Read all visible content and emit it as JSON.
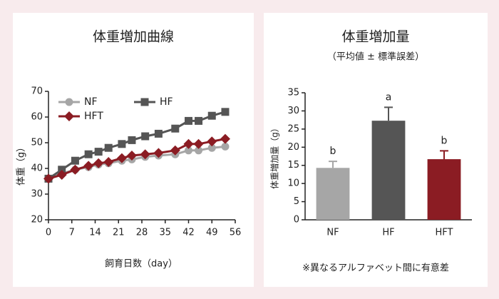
{
  "chart_data": [
    {
      "type": "line",
      "title": "体重増加曲線",
      "x_label": "飼育日数（day）",
      "y_label": "体重（g）",
      "x": [
        0,
        4,
        8,
        12,
        15,
        18,
        22,
        25,
        29,
        33,
        38,
        42,
        45,
        49,
        53
      ],
      "series": [
        {
          "name": "NF",
          "color": "#a6a6a6",
          "marker": "circle",
          "values": [
            36,
            38,
            39.5,
            40.5,
            41.5,
            42,
            43,
            43.5,
            44.5,
            45,
            45.5,
            47,
            47,
            48,
            48.5
          ]
        },
        {
          "name": "HF",
          "color": "#555555",
          "marker": "square",
          "values": [
            36,
            39.5,
            43,
            45.5,
            46.5,
            48,
            49.5,
            51,
            52.5,
            53.5,
            55.5,
            58.5,
            58.5,
            60.5,
            62
          ]
        },
        {
          "name": "HFT",
          "color": "#8b1c23",
          "marker": "diamond",
          "values": [
            36,
            37.5,
            39.5,
            41,
            42,
            42.5,
            44,
            45,
            45.5,
            46,
            47,
            49.5,
            49.5,
            50.5,
            51.5
          ]
        }
      ],
      "xlim": [
        0,
        56
      ],
      "xticks": [
        0,
        7,
        14,
        21,
        28,
        35,
        42,
        49,
        56
      ],
      "ylim": [
        20,
        70
      ],
      "yticks": [
        20,
        30,
        40,
        50,
        60,
        70
      ]
    },
    {
      "type": "bar",
      "title": "体重増加量",
      "subtitle": "（平均値 ± 標準誤差）",
      "y_label": "体重増加量（g）",
      "categories": [
        "NF",
        "HF",
        "HFT"
      ],
      "values": [
        14.3,
        27.3,
        16.7
      ],
      "errors": [
        1.8,
        3.7,
        2.3
      ],
      "colors": [
        "#a6a6a6",
        "#555555",
        "#8b1c23"
      ],
      "letters": [
        "b",
        "a",
        "b"
      ],
      "ylim": [
        0,
        35
      ],
      "yticks": [
        0,
        5,
        10,
        15,
        20,
        25,
        30,
        35
      ],
      "annotation": "※異なるアルファベット間に有意差"
    }
  ]
}
